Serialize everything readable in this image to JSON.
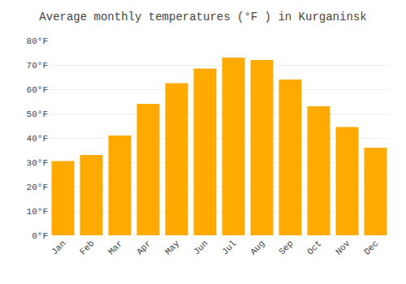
{
  "chart_data": {
    "type": "bar",
    "title": "Average monthly temperatures (°F ) in Kurganinsk",
    "categories": [
      "Jan",
      "Feb",
      "Mar",
      "Apr",
      "May",
      "Jun",
      "Jul",
      "Aug",
      "Sep",
      "Oct",
      "Nov",
      "Dec"
    ],
    "values": [
      30.5,
      33,
      41,
      54,
      62.5,
      68.5,
      73,
      72,
      64,
      53,
      44.5,
      36
    ],
    "color": "#FFAA00",
    "ylim": [
      0,
      80
    ],
    "yticks": [
      {
        "value": 0,
        "label": "0°F"
      },
      {
        "value": 10,
        "label": "10°F"
      },
      {
        "value": 20,
        "label": "20°F"
      },
      {
        "value": 30,
        "label": "30°F"
      },
      {
        "value": 40,
        "label": "40°F"
      },
      {
        "value": 50,
        "label": "50°F"
      },
      {
        "value": 60,
        "label": "60°F"
      },
      {
        "value": 70,
        "label": "70°F"
      },
      {
        "value": 80,
        "label": "80°F"
      }
    ],
    "grid": true
  }
}
